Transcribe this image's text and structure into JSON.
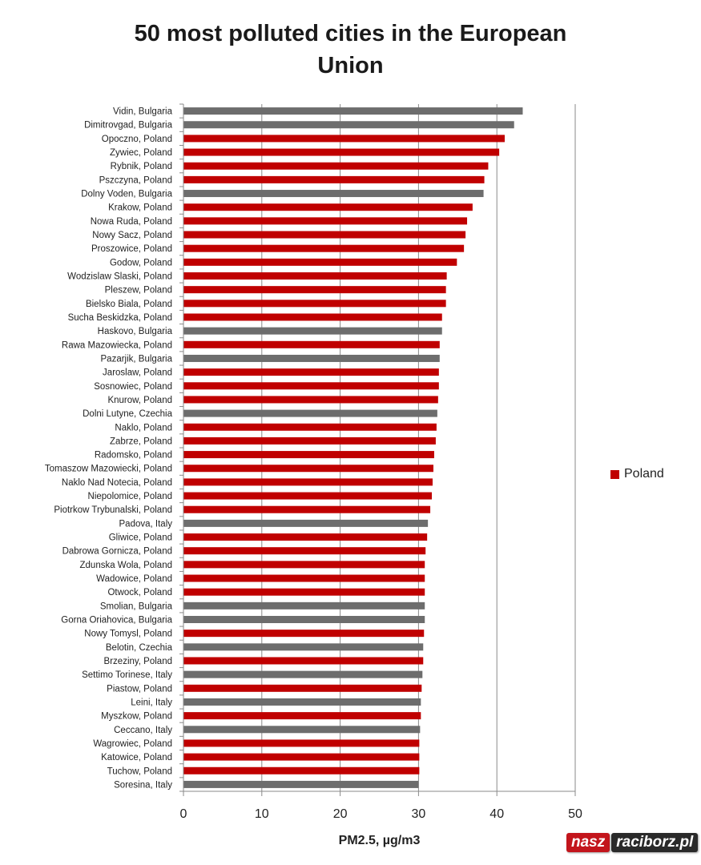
{
  "chart_data": {
    "type": "bar",
    "orientation": "horizontal",
    "title_lines": [
      "50 most polluted cities in the European",
      "Union"
    ],
    "xlabel": "PM2.5, µg/m3",
    "xlim": [
      0,
      50
    ],
    "xticks": [
      0,
      10,
      20,
      30,
      40,
      50
    ],
    "grid": "vertical",
    "legend": {
      "position": "right",
      "entries": [
        {
          "label": "Poland",
          "color": "#c00000"
        }
      ]
    },
    "colors": {
      "poland": "#c00000",
      "other": "#6d6d6d"
    },
    "categories": [
      "Vidin, Bulgaria",
      "Dimitrovgad, Bulgaria",
      "Opoczno, Poland",
      "Zywiec, Poland",
      "Rybnik, Poland",
      "Pszczyna, Poland",
      "Dolny Voden, Bulgaria",
      "Krakow, Poland",
      "Nowa Ruda, Poland",
      "Nowy Sacz, Poland",
      "Proszowice, Poland",
      "Godow, Poland",
      "Wodzislaw Slaski, Poland",
      "Pleszew, Poland",
      "Bielsko Biala, Poland",
      "Sucha Beskidzka, Poland",
      "Haskovo, Bulgaria",
      "Rawa Mazowiecka, Poland",
      "Pazarjik, Bulgaria",
      "Jaroslaw, Poland",
      "Sosnowiec, Poland",
      "Knurow, Poland",
      "Dolni Lutyne, Czechia",
      "Naklo, Poland",
      "Zabrze, Poland",
      "Radomsko, Poland",
      "Tomaszow Mazowiecki, Poland",
      "Naklo Nad Notecia, Poland",
      "Niepolomice, Poland",
      "Piotrkow Trybunalski, Poland",
      "Padova, Italy",
      "Gliwice, Poland",
      "Dabrowa Gornicza, Poland",
      "Zdunska Wola, Poland",
      "Wadowice, Poland",
      "Otwock, Poland",
      "Smolian, Bulgaria",
      "Gorna Oriahovica, Bulgaria",
      "Nowy Tomysl, Poland",
      "Belotin, Czechia",
      "Brzeziny, Poland",
      "Settimo Torinese, Italy",
      "Piastow, Poland",
      "Leini, Italy",
      "Myszkow, Poland",
      "Ceccano, Italy",
      "Wagrowiec, Poland",
      "Katowice, Poland",
      "Tuchow, Poland",
      "Soresina, Italy"
    ],
    "values": [
      43.3,
      42.2,
      41.0,
      40.3,
      38.9,
      38.4,
      38.3,
      36.9,
      36.2,
      36.0,
      35.8,
      34.9,
      33.6,
      33.5,
      33.5,
      33.0,
      33.0,
      32.7,
      32.7,
      32.6,
      32.6,
      32.5,
      32.4,
      32.3,
      32.2,
      32.0,
      31.9,
      31.8,
      31.7,
      31.5,
      31.2,
      31.1,
      30.9,
      30.8,
      30.8,
      30.8,
      30.8,
      30.8,
      30.7,
      30.6,
      30.6,
      30.5,
      30.4,
      30.3,
      30.3,
      30.2,
      30.1,
      30.1,
      30.1,
      30.0
    ],
    "is_poland": [
      false,
      false,
      true,
      true,
      true,
      true,
      false,
      true,
      true,
      true,
      true,
      true,
      true,
      true,
      true,
      true,
      false,
      true,
      false,
      true,
      true,
      true,
      false,
      true,
      true,
      true,
      true,
      true,
      true,
      true,
      false,
      true,
      true,
      true,
      true,
      true,
      false,
      false,
      true,
      false,
      true,
      false,
      true,
      false,
      true,
      false,
      true,
      true,
      true,
      false
    ]
  },
  "watermark": {
    "part1": "nasz",
    "part2": "raciborz.pl"
  }
}
